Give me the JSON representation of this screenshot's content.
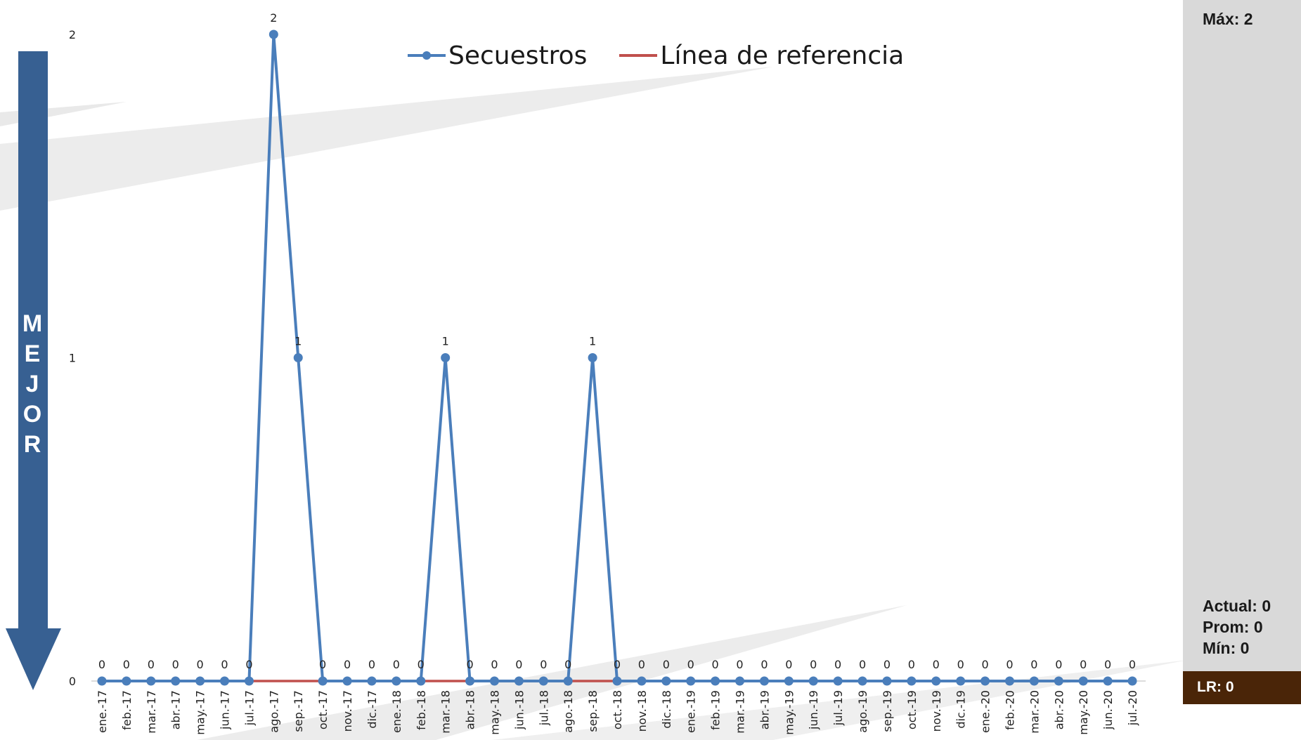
{
  "chart_data": {
    "type": "line",
    "categories": [
      "ene.-17",
      "feb.-17",
      "mar.-17",
      "abr.-17",
      "may.-17",
      "jun.-17",
      "jul.-17",
      "ago.-17",
      "sep.-17",
      "oct.-17",
      "nov.-17",
      "dic.-17",
      "ene.-18",
      "feb.-18",
      "mar.-18",
      "abr.-18",
      "may.-18",
      "jun.-18",
      "jul.-18",
      "ago.-18",
      "sep.-18",
      "oct.-18",
      "nov.-18",
      "dic.-18",
      "ene.-19",
      "feb.-19",
      "mar.-19",
      "abr.-19",
      "may.-19",
      "jun.-19",
      "jul.-19",
      "ago.-19",
      "sep.-19",
      "oct.-19",
      "nov.-19",
      "dic.-19",
      "ene.-20",
      "feb.-20",
      "mar.-20",
      "abr.-20",
      "may.-20",
      "jun.-20",
      "jul.-20"
    ],
    "series": [
      {
        "name": "Secuestros",
        "color": "#4a7ebb",
        "values": [
          0,
          0,
          0,
          0,
          0,
          0,
          0,
          2,
          1,
          0,
          0,
          0,
          0,
          0,
          1,
          0,
          0,
          0,
          0,
          0,
          1,
          0,
          0,
          0,
          0,
          0,
          0,
          0,
          0,
          0,
          0,
          0,
          0,
          0,
          0,
          0,
          0,
          0,
          0,
          0,
          0,
          0,
          0
        ],
        "markers": true,
        "data_labels": true
      },
      {
        "name": "Línea de referencia",
        "color": "#c0504d",
        "values": [
          0,
          0,
          0,
          0,
          0,
          0,
          0,
          0,
          0,
          0,
          0,
          0,
          0,
          0,
          0,
          0,
          0,
          0,
          0,
          0,
          0,
          0,
          0,
          0,
          0,
          0,
          0,
          0,
          0,
          0,
          0,
          0,
          0,
          0,
          0,
          0,
          0,
          0,
          0,
          0,
          0,
          0,
          0
        ],
        "markers": false,
        "data_labels": false
      }
    ],
    "y_ticks": [
      "0",
      "1",
      "2"
    ],
    "ylim": [
      0,
      2
    ],
    "legend_position": "top",
    "grid": false
  },
  "direction_label": [
    "M",
    "E",
    "J",
    "O",
    "R"
  ],
  "panel": {
    "max": "Máx: 2",
    "actual": "Actual: 0",
    "prom": "Prom: 0",
    "min": "Mín: 0",
    "lr": "LR: 0"
  },
  "colors": {
    "arrow": "#376092",
    "panel": "#d9d9d9",
    "lr_box": "#4a2508",
    "decor": "#e8e8e8"
  }
}
